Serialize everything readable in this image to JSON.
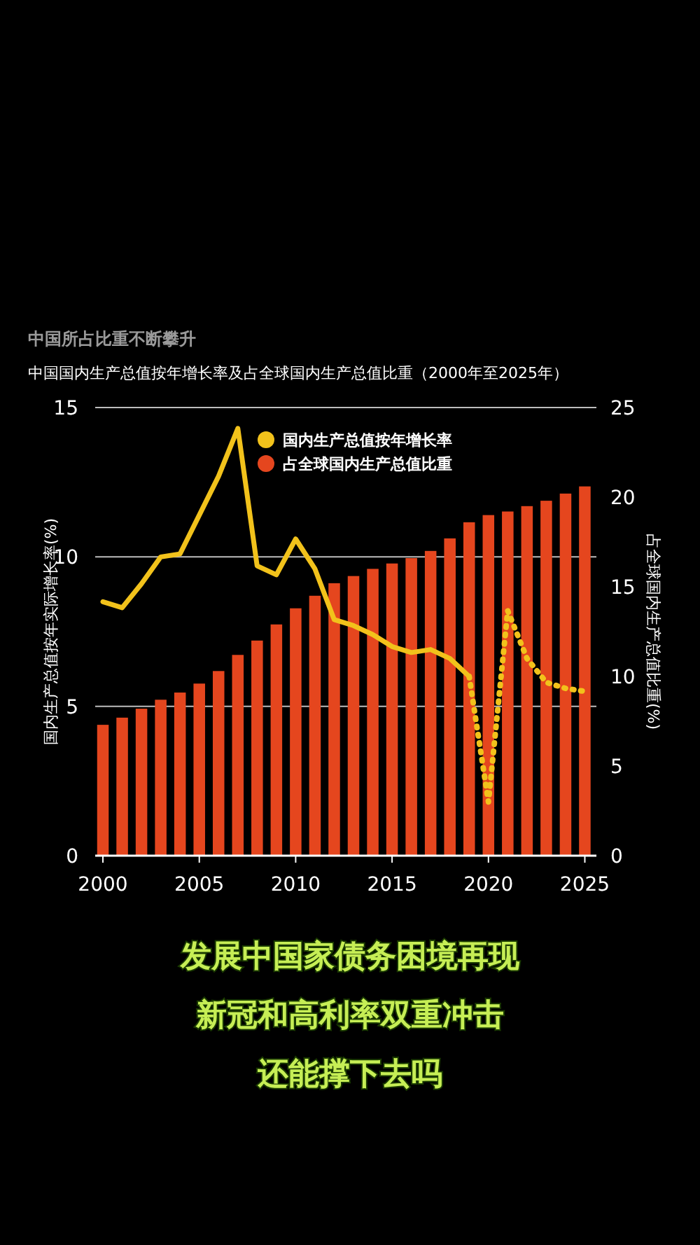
{
  "chart_data": {
    "type": "bar",
    "title": "中国所占比重不断攀升",
    "subtitle": "中国国内生产总值按年增长率及占全球国内生产总值比重（2000年至2025年）",
    "ylabel": "国内生产总值按年实际增长率(%)",
    "y2label": "占全球国内生产总值比重(%)",
    "x": [
      2000,
      2001,
      2002,
      2003,
      2004,
      2005,
      2006,
      2007,
      2008,
      2009,
      2010,
      2011,
      2012,
      2013,
      2014,
      2015,
      2016,
      2017,
      2018,
      2019,
      2020,
      2021,
      2022,
      2023,
      2024,
      2025
    ],
    "series": [
      {
        "name": "占全球国内生产总值比重",
        "axis": "y2",
        "color": "#e5461e",
        "values": [
          7.3,
          7.7,
          8.2,
          8.7,
          9.1,
          9.6,
          10.3,
          11.2,
          12.0,
          12.9,
          13.8,
          14.5,
          15.2,
          15.6,
          16.0,
          16.3,
          16.6,
          17.0,
          17.7,
          18.6,
          19.0,
          19.2,
          19.5,
          19.8,
          20.2,
          20.6
        ]
      },
      {
        "name": "国内生产总值按年增长率",
        "type": "line",
        "axis": "y",
        "color": "#f2c21b",
        "line_style": "solid",
        "x": [
          2000,
          2001,
          2002,
          2003,
          2004,
          2005,
          2006,
          2007,
          2008,
          2009,
          2010,
          2011,
          2012,
          2013,
          2014,
          2015,
          2016,
          2017,
          2018,
          2019
        ],
        "values": [
          8.5,
          8.3,
          9.1,
          10.0,
          10.1,
          11.4,
          12.7,
          14.3,
          9.7,
          9.4,
          10.6,
          9.6,
          7.9,
          7.7,
          7.4,
          7.0,
          6.8,
          6.9,
          6.6,
          6.0
        ]
      },
      {
        "type": "line",
        "axis": "y",
        "color": "#f2c21b",
        "line_style": "dotted",
        "x": [
          2019,
          2020,
          2021,
          2022,
          2023,
          2024,
          2025
        ],
        "values": [
          6.0,
          1.8,
          8.2,
          6.6,
          5.8,
          5.6,
          5.5
        ]
      }
    ],
    "xlim": [
      1999.6,
      2025.6
    ],
    "xticks": [
      2000,
      2005,
      2010,
      2015,
      2020,
      2025
    ],
    "ylim": [
      0,
      15
    ],
    "yticks": [
      0,
      5,
      10,
      15
    ],
    "y2lim": [
      0,
      25
    ],
    "y2ticks": [
      0,
      5,
      10,
      15,
      20,
      25
    ],
    "grid": "y",
    "legend": "top",
    "marker": "none",
    "annotations": [
      "发展中国家债务困境再现",
      "新冠和高利率双重冲击",
      "还能撑下去吗"
    ]
  }
}
